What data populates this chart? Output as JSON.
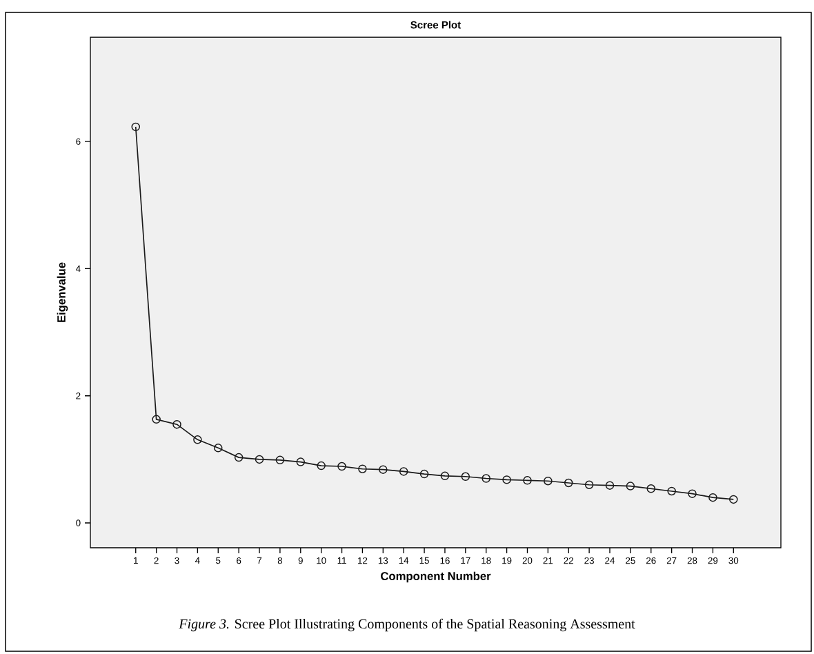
{
  "chart_data": {
    "type": "line",
    "title": "Scree Plot",
    "xlabel": "Component Number",
    "ylabel": "Eigenvalue",
    "x": [
      1,
      2,
      3,
      4,
      5,
      6,
      7,
      8,
      9,
      10,
      11,
      12,
      13,
      14,
      15,
      16,
      17,
      18,
      19,
      20,
      21,
      22,
      23,
      24,
      25,
      26,
      27,
      28,
      29,
      30
    ],
    "series": [
      {
        "color": "#1a1a1a",
        "values": [
          6.23,
          1.63,
          1.55,
          1.31,
          1.18,
          1.03,
          1.0,
          0.99,
          0.96,
          0.9,
          0.89,
          0.85,
          0.84,
          0.81,
          0.77,
          0.74,
          0.73,
          0.7,
          0.68,
          0.67,
          0.66,
          0.63,
          0.6,
          0.59,
          0.58,
          0.54,
          0.5,
          0.46,
          0.4,
          0.37
        ]
      }
    ],
    "xlim": [
      -1.2,
      32.3
    ],
    "ylim": [
      -0.39,
      7.64
    ],
    "xticks": [
      1,
      2,
      3,
      4,
      5,
      6,
      7,
      8,
      9,
      10,
      11,
      12,
      13,
      14,
      15,
      16,
      17,
      18,
      19,
      20,
      21,
      22,
      23,
      24,
      25,
      26,
      27,
      28,
      29,
      30
    ],
    "yticks": [
      0,
      2,
      4,
      6
    ],
    "marker": "circle",
    "line_style": "solid",
    "grid": false,
    "annotations": [
      "*Figure 3.* Scree Plot Illustrating Components of the Spatial Reasoning Assessment"
    ]
  }
}
